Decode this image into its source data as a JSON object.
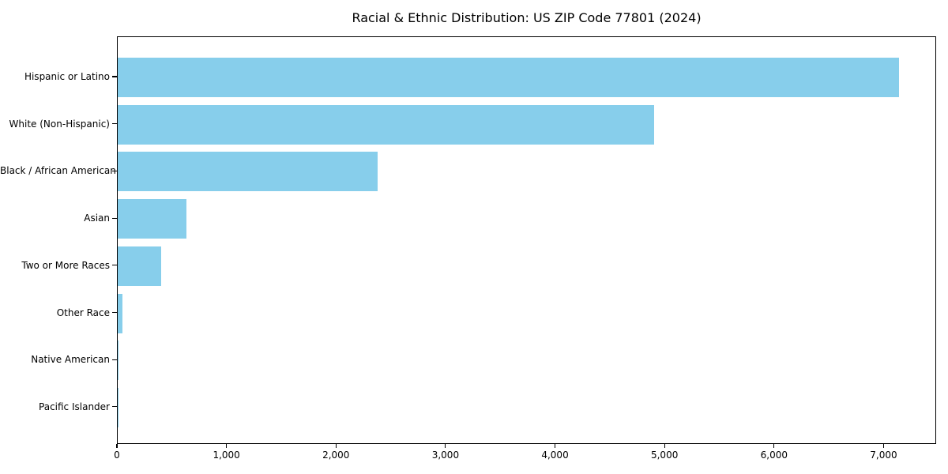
{
  "chart_data": {
    "type": "bar",
    "orientation": "horizontal",
    "title": "Racial & Ethnic Distribution: US ZIP Code 77801 (2024)",
    "categories": [
      "Hispanic or Latino",
      "White (Non-Hispanic)",
      "Black / African American",
      "Asian",
      "Two or More Races",
      "Other Race",
      "Native American",
      "Pacific Islander"
    ],
    "values": [
      7133,
      4895,
      2375,
      628,
      400,
      40,
      10,
      2
    ],
    "xlabel": "",
    "ylabel": "",
    "xlim": [
      0,
      7480
    ],
    "x_tick_values": [
      0,
      1000,
      2000,
      3000,
      4000,
      5000,
      6000,
      7000
    ],
    "x_tick_labels": [
      "0",
      "1,000",
      "2,000",
      "3,000",
      "4,000",
      "5,000",
      "6,000",
      "7,000"
    ],
    "bar_color": "#87CEEB",
    "axis_color": "#000000",
    "background_color": "#FFFFFF",
    "grid": false,
    "legend": null
  }
}
